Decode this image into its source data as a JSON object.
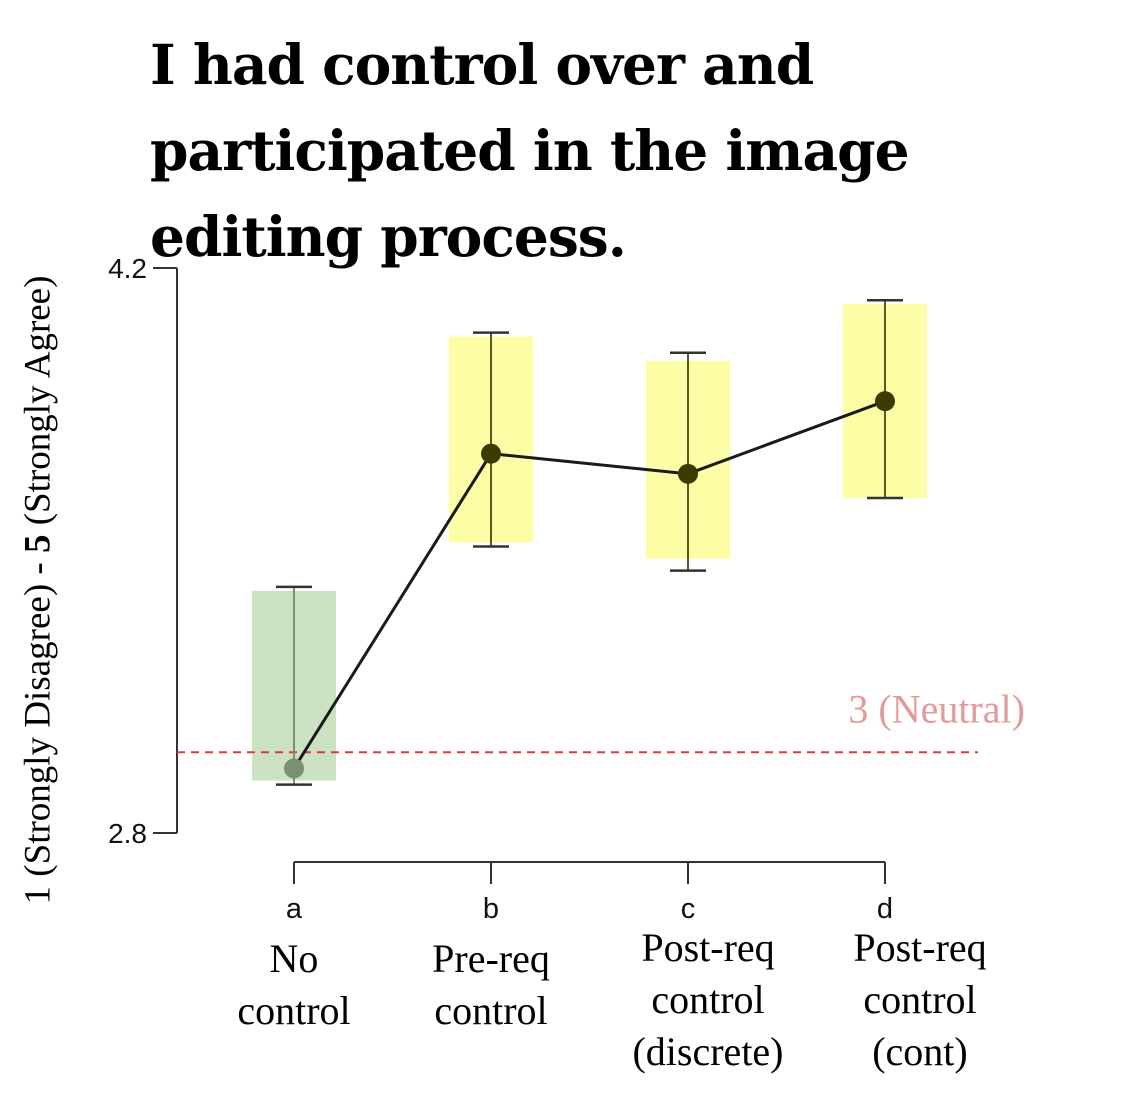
{
  "chart_data": {
    "type": "line",
    "title": "I had control over and participated in the image editing process.",
    "ylabel_parts": [
      "1 (Strongly Disagree) - ",
      "5",
      " (Strongly Agree)"
    ],
    "ylim": [
      2.8,
      4.2
    ],
    "yticks": [
      "4.2",
      "2.8"
    ],
    "ytick_values": [
      4.2,
      2.8
    ],
    "categories": [
      "a",
      "b",
      "c",
      "d"
    ],
    "category_labels": [
      [
        "No",
        "control"
      ],
      [
        "Pre-req",
        "control"
      ],
      [
        "Post-req",
        "control",
        "(discrete)"
      ],
      [
        "Post-req",
        "control",
        "(cont)"
      ]
    ],
    "values": [
      2.96,
      3.74,
      3.69,
      3.87
    ],
    "error_low": [
      2.92,
      3.51,
      3.45,
      3.63
    ],
    "error_high": [
      3.41,
      4.04,
      3.99,
      4.12
    ],
    "box_low": [
      2.93,
      3.52,
      3.48,
      3.63
    ],
    "box_high": [
      3.4,
      4.03,
      3.97,
      4.11
    ],
    "box_colors": [
      "#cce3c3",
      "#fdfda6",
      "#fdfda6",
      "#fdfda6"
    ],
    "point_colors": [
      "#7a9070",
      "#3b3b00",
      "#3b3b00",
      "#3b3b00"
    ],
    "line_color": "#1a1a1a",
    "reference_line": {
      "value": 3.0,
      "label": "3 (Neutral)",
      "line_color": "#e03a3a",
      "label_color": "#e59a9a"
    },
    "grid": false
  }
}
